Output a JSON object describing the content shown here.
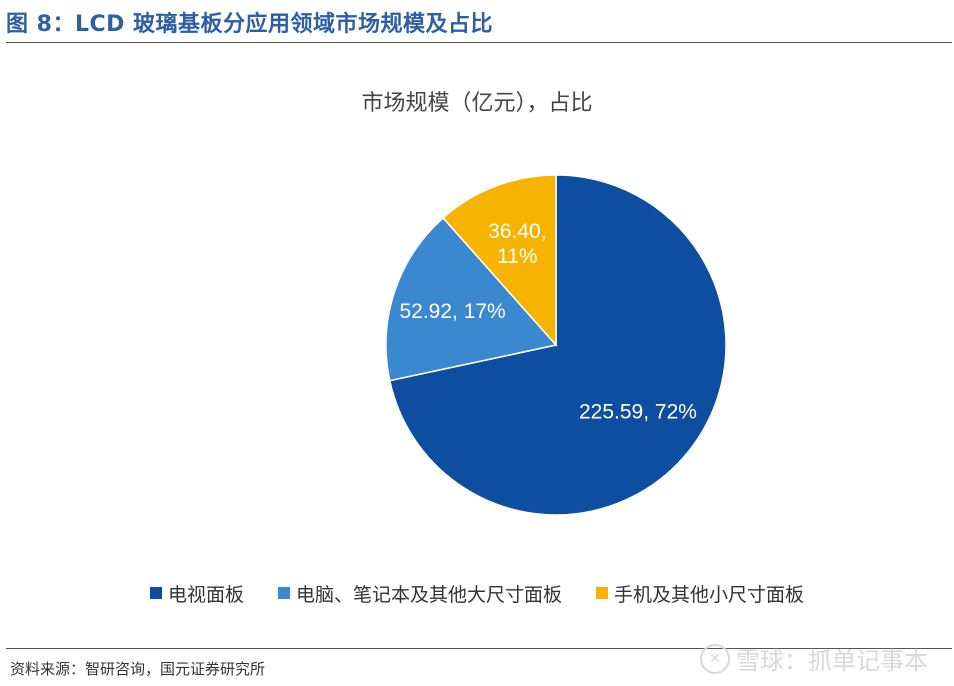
{
  "figure_title": "图 8：LCD 玻璃基板分应用领域市场规模及占比",
  "source": "资料来源：智研咨询，国元证券研究所",
  "watermark": {
    "text": "雪球：抓单记事本",
    "logo": "xueqiu-logo"
  },
  "chart_data": {
    "type": "pie",
    "title": "市场规模（亿元），占比",
    "slices": [
      {
        "name": "电视面板",
        "value": 225.59,
        "percent": 72,
        "label": "225.59, 72%",
        "color": "#0e4ea0"
      },
      {
        "name": "电脑、笔记本及其他大尺寸面板",
        "value": 52.92,
        "percent": 17,
        "label": "52.92, 17%",
        "color": "#3a88d0"
      },
      {
        "name": "手机及其他小尺寸面板",
        "value": 36.4,
        "percent": 11,
        "label": "36.40,\n11%",
        "color": "#f6b400"
      }
    ],
    "start": "12 o'clock",
    "direction": "clockwise",
    "legend_position": "bottom"
  }
}
